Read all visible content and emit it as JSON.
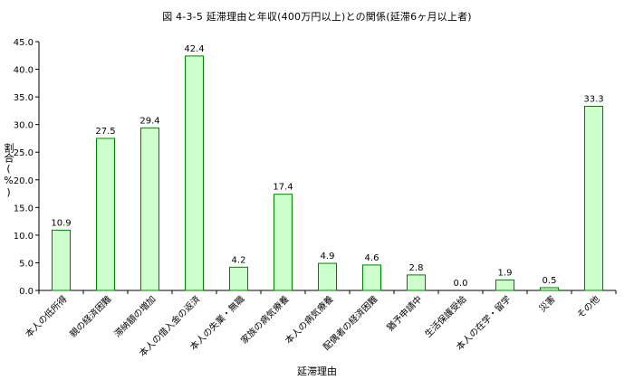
{
  "chart_data": {
    "type": "bar",
    "title": "図 4-3-5 延滞理由と年収(400万円以上)との関係(延滞6ヶ月以上者)",
    "xlabel": "延滞理由",
    "ylabel": "割合(%)",
    "ylim": [
      0,
      45
    ],
    "yticks": [
      "0.0",
      "5.0",
      "10.0",
      "15.0",
      "20.0",
      "25.0",
      "30.0",
      "35.0",
      "40.0",
      "45.0"
    ],
    "grid": false,
    "categories": [
      "本人の低所得",
      "親の経済困難",
      "滞納額の増加",
      "本人の借入金の返済",
      "本人の失業・無職",
      "家族の病気療養",
      "本人の病気療養",
      "配偶者の経済困難",
      "猶予申請中",
      "生活保護受給",
      "本人の在学・留学",
      "災害",
      "その他"
    ],
    "values": [
      10.9,
      27.5,
      29.4,
      42.4,
      4.2,
      17.4,
      4.9,
      4.6,
      2.8,
      0.0,
      1.9,
      0.5,
      33.3
    ],
    "value_labels": [
      "10.9",
      "27.5",
      "29.4",
      "42.4",
      "4.2",
      "17.4",
      "4.9",
      "4.6",
      "2.8",
      "0.0",
      "1.9",
      "0.5",
      "33.3"
    ],
    "bar_fill": "#ccffcc",
    "bar_stroke": "#008000"
  }
}
